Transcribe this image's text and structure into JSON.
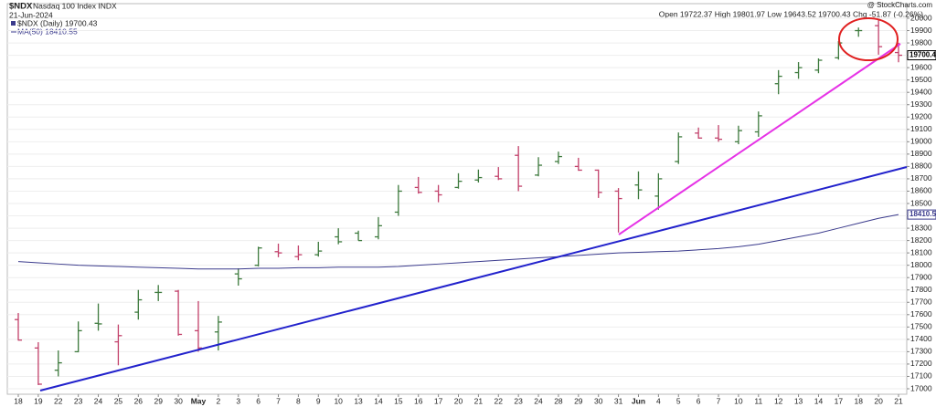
{
  "header": {
    "symbol": "$NDX",
    "name": "Nasdaq 100 Index INDX",
    "date": "21-Jun-2024",
    "credit": "@ StockCharts.com",
    "quote": "Open 19722.37  High 19801.97  Low 19643.52  19700.43  Chg -51.87 (-0.26%)"
  },
  "chart_data": {
    "type": "ohlc",
    "categories": [
      "18",
      "19",
      "22",
      "23",
      "24",
      "25",
      "26",
      "29",
      "30",
      "May",
      "2",
      "3",
      "6",
      "7",
      "8",
      "9",
      "10",
      "13",
      "14",
      "15",
      "16",
      "17",
      "20",
      "21",
      "22",
      "23",
      "24",
      "28",
      "29",
      "30",
      "31",
      "Jun",
      "4",
      "5",
      "6",
      "7",
      "10",
      "11",
      "12",
      "13",
      "14",
      "17",
      "18",
      "20",
      "21"
    ],
    "series": [
      {
        "name": "$NDX (Daily) 19700.43",
        "up_color": "#3d7a3d",
        "down_color": "#c2406a",
        "open": [
          17560,
          17330,
          17150,
          17300,
          17530,
          17380,
          17620,
          17780,
          17790,
          17470,
          17460,
          17930,
          18000,
          18110,
          18070,
          18085,
          18230,
          18260,
          18230,
          18430,
          18630,
          18600,
          18630,
          18690,
          18720,
          18890,
          18730,
          18840,
          18800,
          18770,
          18600,
          18650,
          18560,
          18840,
          19070,
          19030,
          19000,
          19080,
          19470,
          19560,
          19580,
          19680,
          19900,
          19940,
          19722.37
        ],
        "high": [
          17613,
          17377,
          17310,
          17545,
          17690,
          17520,
          17800,
          17840,
          17800,
          17710,
          17590,
          17975,
          18150,
          18175,
          18160,
          18190,
          18300,
          18280,
          18390,
          18650,
          18715,
          18650,
          18745,
          18775,
          18795,
          18965,
          18875,
          18920,
          18870,
          18775,
          18625,
          18760,
          18745,
          19075,
          19115,
          19135,
          19130,
          19245,
          19580,
          19645,
          19675,
          19815,
          19925,
          19985,
          19801.97
        ],
        "low": [
          17390,
          17030,
          17100,
          17295,
          17470,
          17190,
          17560,
          17710,
          17430,
          17300,
          17310,
          17835,
          17990,
          18065,
          18040,
          18070,
          18170,
          18200,
          18210,
          18400,
          18580,
          18510,
          18620,
          18670,
          18690,
          18600,
          18720,
          18820,
          18765,
          18545,
          18265,
          18535,
          18450,
          18820,
          19025,
          19000,
          18980,
          19040,
          19385,
          19510,
          19555,
          19665,
          19850,
          19705,
          19643.52
        ],
        "close": [
          17394,
          17037,
          17210,
          17470,
          17525,
          17430,
          17720,
          17780,
          17440,
          17330,
          17540,
          17890,
          18140,
          18100,
          18085,
          18115,
          18190,
          18200,
          18320,
          18600,
          18590,
          18570,
          18680,
          18710,
          18700,
          18640,
          18810,
          18880,
          18770,
          18590,
          18540,
          18610,
          18700,
          19040,
          19030,
          19020,
          19090,
          19210,
          19530,
          19600,
          19660,
          19800,
          19900,
          19770,
          19700.43
        ]
      },
      {
        "name": "MA(50) 18410.55",
        "color": "#3a3a8c",
        "values": [
          18030,
          18020,
          18010,
          18000,
          17995,
          17990,
          17985,
          17980,
          17975,
          17970,
          17970,
          17970,
          17975,
          17975,
          17980,
          17980,
          17985,
          17985,
          17985,
          17990,
          18000,
          18010,
          18020,
          18030,
          18040,
          18050,
          18060,
          18070,
          18080,
          18090,
          18100,
          18105,
          18110,
          18115,
          18125,
          18135,
          18150,
          18170,
          18200,
          18230,
          18260,
          18300,
          18340,
          18380,
          18410.55
        ]
      }
    ],
    "price_tags": [
      {
        "value": 19700.43,
        "color": "#000000"
      },
      {
        "value": 18410.55,
        "color": "#3a3a8c"
      }
    ],
    "ylim": [
      17000,
      20000
    ],
    "yticks": [
      17000,
      17100,
      17200,
      17300,
      17400,
      17500,
      17600,
      17700,
      17800,
      17900,
      18000,
      18100,
      18200,
      18300,
      18400,
      18500,
      18600,
      18700,
      18800,
      18900,
      19000,
      19100,
      19200,
      19300,
      19400,
      19500,
      19600,
      19700,
      19800,
      19900,
      20000
    ],
    "grid": true
  }
}
